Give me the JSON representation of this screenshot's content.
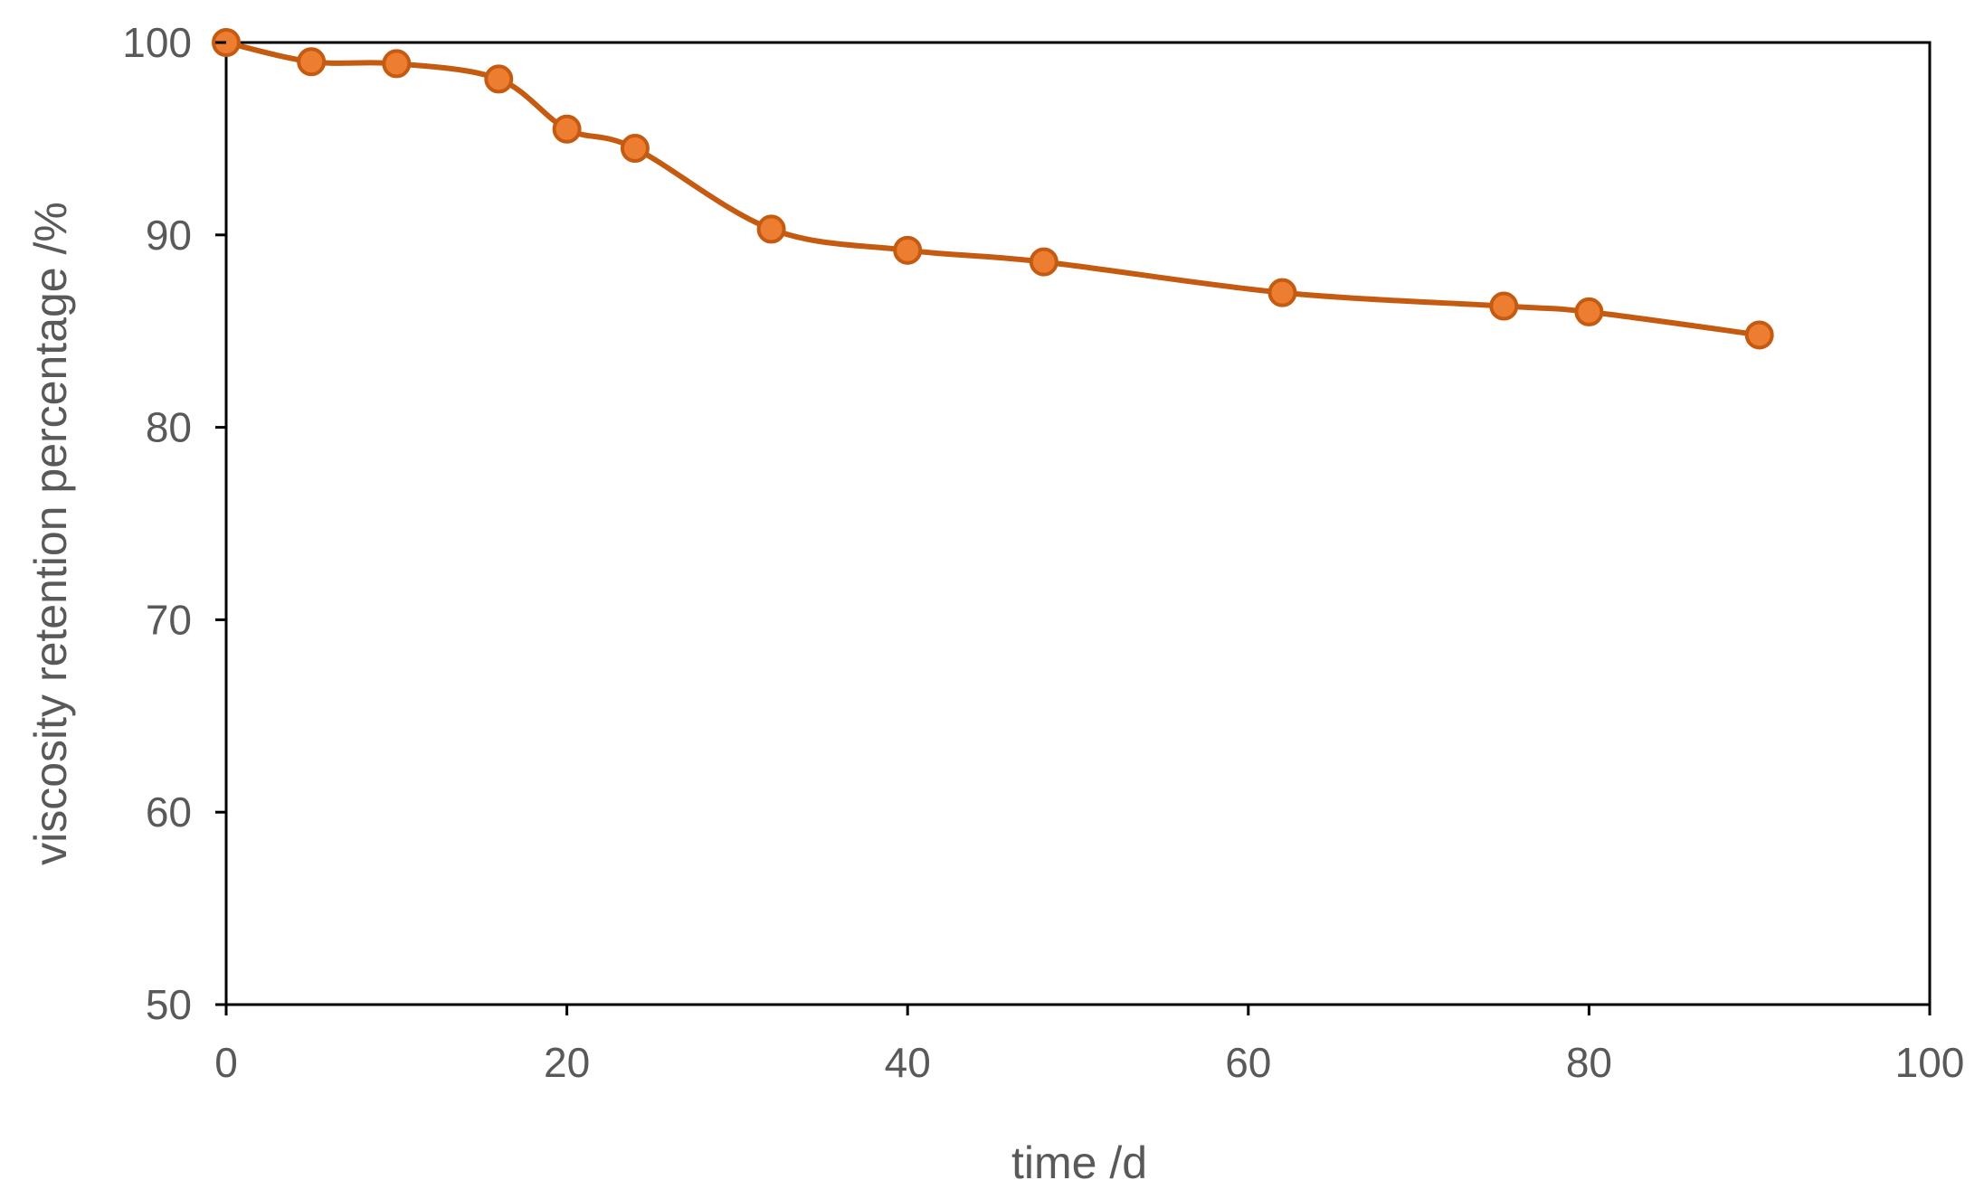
{
  "chart_data": {
    "type": "line",
    "title": "",
    "xlabel": "time /d",
    "ylabel": "viscosity retention percentage /%",
    "xlim": [
      0,
      100
    ],
    "ylim": [
      50,
      100
    ],
    "x_ticks": [
      0,
      20,
      40,
      60,
      80,
      100
    ],
    "y_ticks": [
      50,
      60,
      70,
      80,
      90,
      100
    ],
    "x_tick_labels": [
      "0",
      "20",
      "40",
      "60",
      "80",
      "100"
    ],
    "y_tick_labels": [
      "50",
      "60",
      "70",
      "80",
      "90",
      "100"
    ],
    "grid": false,
    "legend": "none",
    "smooth": true,
    "series": [
      {
        "x": [
          0,
          5,
          10,
          16,
          20,
          24,
          32,
          40,
          48,
          62,
          75,
          80,
          90
        ],
        "y": [
          100,
          99.0,
          98.9,
          98.1,
          95.5,
          94.5,
          90.3,
          89.2,
          88.6,
          87.0,
          86.3,
          86.0,
          84.8
        ],
        "color": "#c55a11",
        "marker_fill": "#ed7d31"
      }
    ],
    "colors": {
      "line": "#c55a11",
      "marker_fill": "#ed7d31",
      "marker_edge": "#c55a11",
      "frame": "#000000",
      "text": "#595959"
    }
  }
}
